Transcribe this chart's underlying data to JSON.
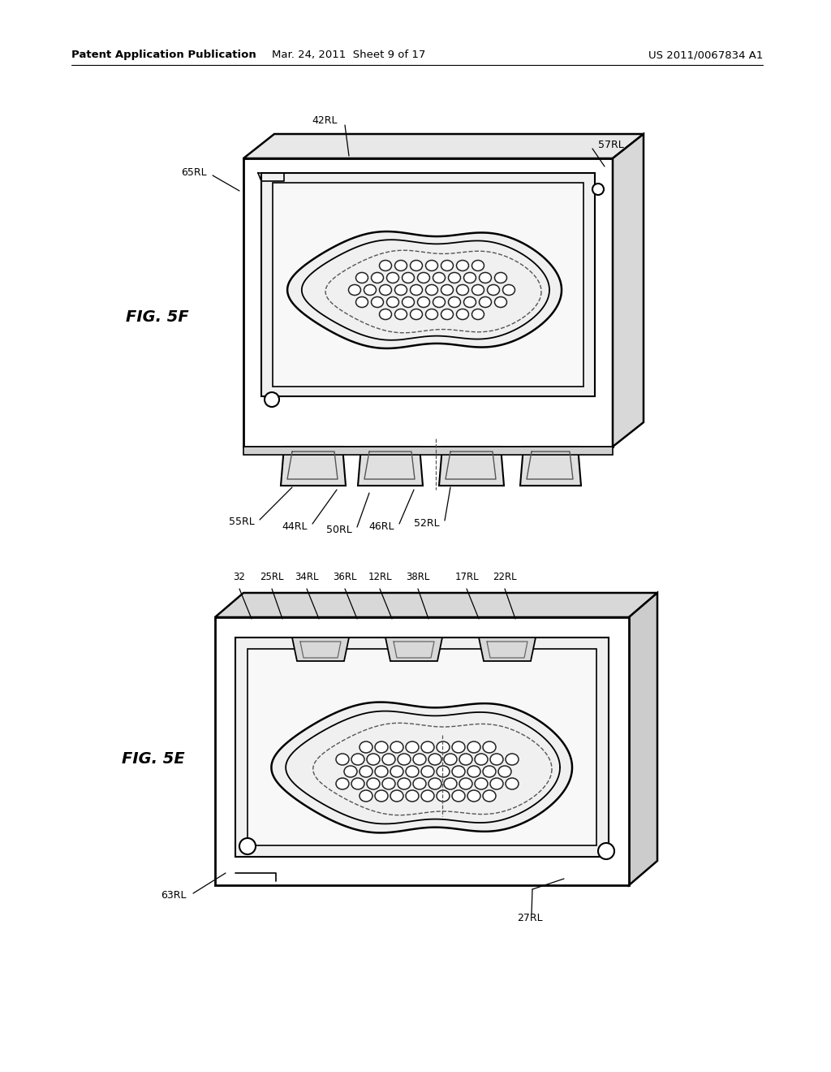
{
  "bg_color": "#ffffff",
  "fig_width": 10.24,
  "fig_height": 13.2,
  "header_left": "Patent Application Publication",
  "header_center": "Mar. 24, 2011  Sheet 9 of 17",
  "header_right": "US 2011/0067834 A1",
  "fig5f_label": "FIG. 5F",
  "fig5e_label": "FIG. 5E",
  "line_color": "#000000"
}
